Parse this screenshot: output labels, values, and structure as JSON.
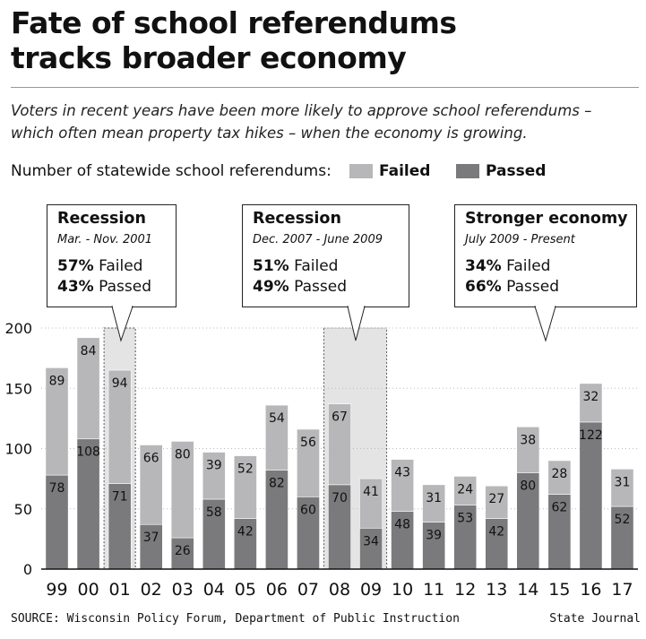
{
  "header": {
    "title_line1": "Fate of school referendums",
    "title_line2": "tracks broader economy",
    "subtitle_line1": "Voters in recent years have been more likely to approve school referendums –",
    "subtitle_line2": "which often mean property tax hikes – when the economy is growing."
  },
  "legend": {
    "label": "Number of statewide school referendums:",
    "failed": "Failed",
    "passed": "Passed"
  },
  "colors": {
    "failed": "#b7b7b9",
    "passed": "#7a7a7c",
    "shade": "#e4e4e5"
  },
  "callouts": [
    {
      "title": "Recession",
      "dates": "Mar. - Nov. 2001",
      "failed_pct": "57%",
      "failed_label": "Failed",
      "passed_pct": "43%",
      "passed_label": "Passed"
    },
    {
      "title": "Recession",
      "dates": "Dec. 2007 - June 2009",
      "failed_pct": "51%",
      "failed_label": "Failed",
      "passed_pct": "49%",
      "passed_label": "Passed"
    },
    {
      "title": "Stronger economy",
      "dates": "July 2009 - Present",
      "failed_pct": "34%",
      "failed_label": "Failed",
      "passed_pct": "66%",
      "passed_label": "Passed"
    }
  ],
  "chart_data": {
    "type": "bar",
    "stacked": true,
    "categories": [
      "99",
      "00",
      "01",
      "02",
      "03",
      "04",
      "05",
      "06",
      "07",
      "08",
      "09",
      "10",
      "11",
      "12",
      "13",
      "14",
      "15",
      "16",
      "17"
    ],
    "series": [
      {
        "name": "Passed",
        "values": [
          78,
          108,
          71,
          37,
          26,
          58,
          42,
          82,
          60,
          70,
          34,
          48,
          39,
          53,
          42,
          80,
          62,
          122,
          52
        ]
      },
      {
        "name": "Failed",
        "values": [
          89,
          84,
          94,
          66,
          80,
          39,
          52,
          54,
          56,
          67,
          41,
          43,
          31,
          24,
          27,
          38,
          28,
          32,
          31
        ]
      }
    ],
    "ylim": [
      0,
      200
    ],
    "yticks": [
      0,
      50,
      100,
      150,
      200
    ],
    "shaded_periods": [
      [
        "01",
        "01"
      ],
      [
        "08",
        "09"
      ]
    ]
  },
  "footer": {
    "source": "SOURCE:  Wisconsin Policy Forum, Department of Public Instruction",
    "credit": "State Journal"
  }
}
